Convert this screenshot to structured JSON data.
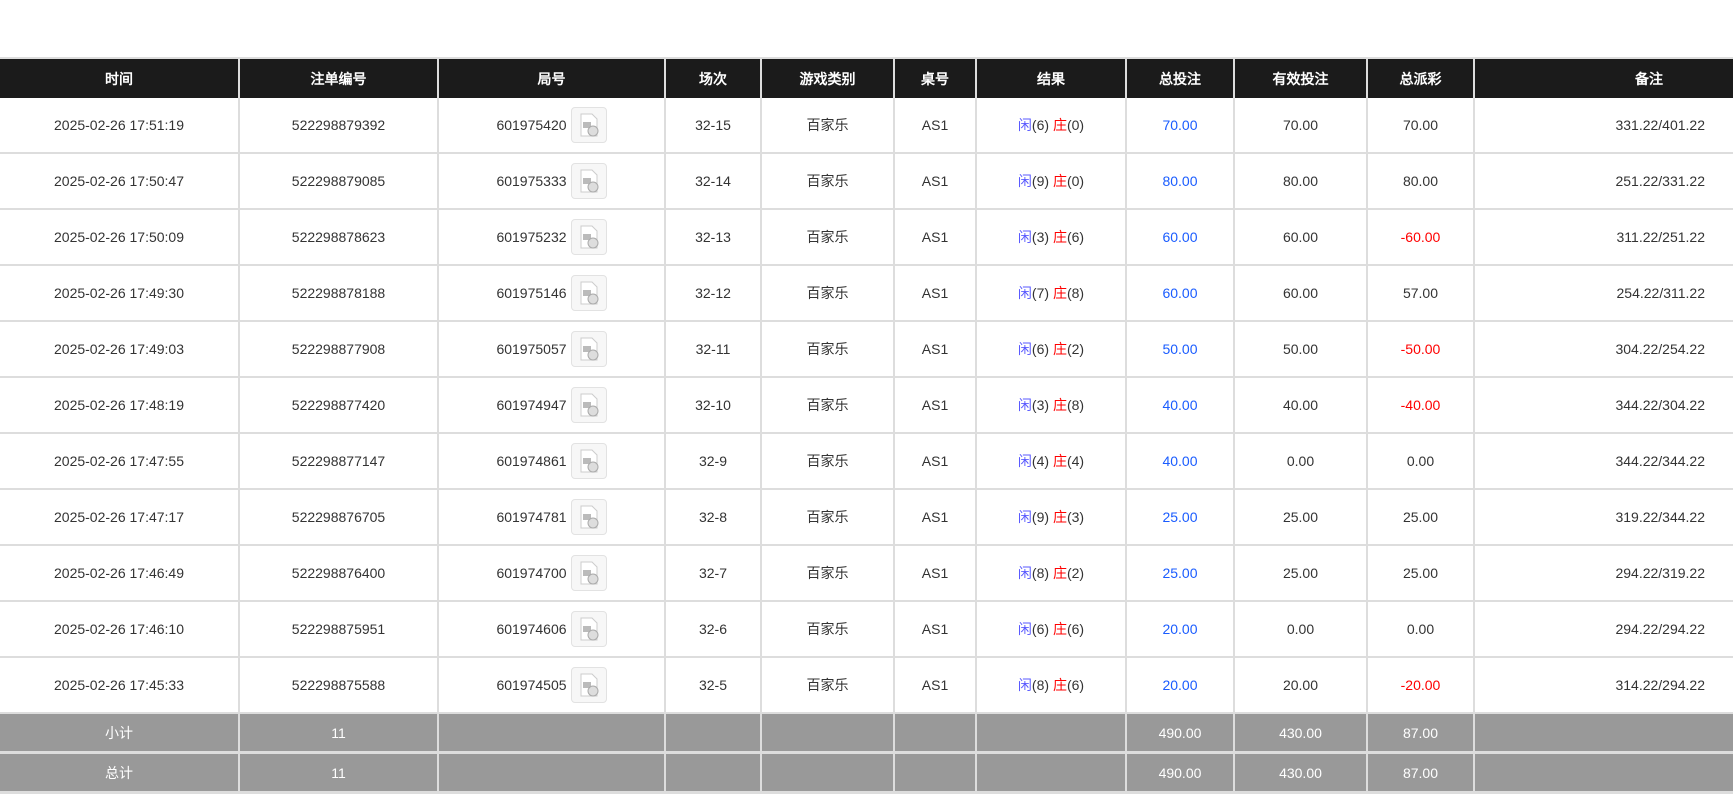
{
  "headers": [
    "时间",
    "注单编号",
    "局号",
    "场次",
    "游戏类别",
    "桌号",
    "结果",
    "总投注",
    "有效投注",
    "总派彩",
    "备注"
  ],
  "colors": {
    "header_bg": "#1b1b1b",
    "bet_blue": "#1a5cff",
    "negative_red": "#ff0000",
    "player": "#5a5aff",
    "banker": "#ff0000",
    "summary_bg": "#999999"
  },
  "rows": [
    {
      "time": "2025-02-26 17:51:19",
      "bet_id": "522298879392",
      "round": "601975420",
      "session": "32-15",
      "game": "百家乐",
      "table": "AS1",
      "player_label": "闲",
      "player": "(6)",
      "banker_label": "庄",
      "banker": "(0)",
      "total_bet": "70.00",
      "valid_bet": "70.00",
      "payout": "70.00",
      "payout_negative": false,
      "remark": "331.22/401.22"
    },
    {
      "time": "2025-02-26 17:50:47",
      "bet_id": "522298879085",
      "round": "601975333",
      "session": "32-14",
      "game": "百家乐",
      "table": "AS1",
      "player_label": "闲",
      "player": "(9)",
      "banker_label": "庄",
      "banker": "(0)",
      "total_bet": "80.00",
      "valid_bet": "80.00",
      "payout": "80.00",
      "payout_negative": false,
      "remark": "251.22/331.22"
    },
    {
      "time": "2025-02-26 17:50:09",
      "bet_id": "522298878623",
      "round": "601975232",
      "session": "32-13",
      "game": "百家乐",
      "table": "AS1",
      "player_label": "闲",
      "player": "(3)",
      "banker_label": "庄",
      "banker": "(6)",
      "total_bet": "60.00",
      "valid_bet": "60.00",
      "payout": "-60.00",
      "payout_negative": true,
      "remark": "311.22/251.22"
    },
    {
      "time": "2025-02-26 17:49:30",
      "bet_id": "522298878188",
      "round": "601975146",
      "session": "32-12",
      "game": "百家乐",
      "table": "AS1",
      "player_label": "闲",
      "player": "(7)",
      "banker_label": "庄",
      "banker": "(8)",
      "total_bet": "60.00",
      "valid_bet": "60.00",
      "payout": "57.00",
      "payout_negative": false,
      "remark": "254.22/311.22"
    },
    {
      "time": "2025-02-26 17:49:03",
      "bet_id": "522298877908",
      "round": "601975057",
      "session": "32-11",
      "game": "百家乐",
      "table": "AS1",
      "player_label": "闲",
      "player": "(6)",
      "banker_label": "庄",
      "banker": "(2)",
      "total_bet": "50.00",
      "valid_bet": "50.00",
      "payout": "-50.00",
      "payout_negative": true,
      "remark": "304.22/254.22"
    },
    {
      "time": "2025-02-26 17:48:19",
      "bet_id": "522298877420",
      "round": "601974947",
      "session": "32-10",
      "game": "百家乐",
      "table": "AS1",
      "player_label": "闲",
      "player": "(3)",
      "banker_label": "庄",
      "banker": "(8)",
      "total_bet": "40.00",
      "valid_bet": "40.00",
      "payout": "-40.00",
      "payout_negative": true,
      "remark": "344.22/304.22"
    },
    {
      "time": "2025-02-26 17:47:55",
      "bet_id": "522298877147",
      "round": "601974861",
      "session": "32-9",
      "game": "百家乐",
      "table": "AS1",
      "player_label": "闲",
      "player": "(4)",
      "banker_label": "庄",
      "banker": "(4)",
      "total_bet": "40.00",
      "valid_bet": "0.00",
      "payout": "0.00",
      "payout_negative": false,
      "remark": "344.22/344.22"
    },
    {
      "time": "2025-02-26 17:47:17",
      "bet_id": "522298876705",
      "round": "601974781",
      "session": "32-8",
      "game": "百家乐",
      "table": "AS1",
      "player_label": "闲",
      "player": "(9)",
      "banker_label": "庄",
      "banker": "(3)",
      "total_bet": "25.00",
      "valid_bet": "25.00",
      "payout": "25.00",
      "payout_negative": false,
      "remark": "319.22/344.22"
    },
    {
      "time": "2025-02-26 17:46:49",
      "bet_id": "522298876400",
      "round": "601974700",
      "session": "32-7",
      "game": "百家乐",
      "table": "AS1",
      "player_label": "闲",
      "player": "(8)",
      "banker_label": "庄",
      "banker": "(2)",
      "total_bet": "25.00",
      "valid_bet": "25.00",
      "payout": "25.00",
      "payout_negative": false,
      "remark": "294.22/319.22"
    },
    {
      "time": "2025-02-26 17:46:10",
      "bet_id": "522298875951",
      "round": "601974606",
      "session": "32-6",
      "game": "百家乐",
      "table": "AS1",
      "player_label": "闲",
      "player": "(6)",
      "banker_label": "庄",
      "banker": "(6)",
      "total_bet": "20.00",
      "valid_bet": "0.00",
      "payout": "0.00",
      "payout_negative": false,
      "remark": "294.22/294.22"
    },
    {
      "time": "2025-02-26 17:45:33",
      "bet_id": "522298875588",
      "round": "601974505",
      "session": "32-5",
      "game": "百家乐",
      "table": "AS1",
      "player_label": "闲",
      "player": "(8)",
      "banker_label": "庄",
      "banker": "(6)",
      "total_bet": "20.00",
      "valid_bet": "20.00",
      "payout": "-20.00",
      "payout_negative": true,
      "remark": "314.22/294.22"
    }
  ],
  "summary": [
    {
      "label": "小计",
      "count": "11",
      "total_bet": "490.00",
      "valid_bet": "430.00",
      "payout": "87.00"
    },
    {
      "label": "总计",
      "count": "11",
      "total_bet": "490.00",
      "valid_bet": "430.00",
      "payout": "87.00"
    }
  ]
}
